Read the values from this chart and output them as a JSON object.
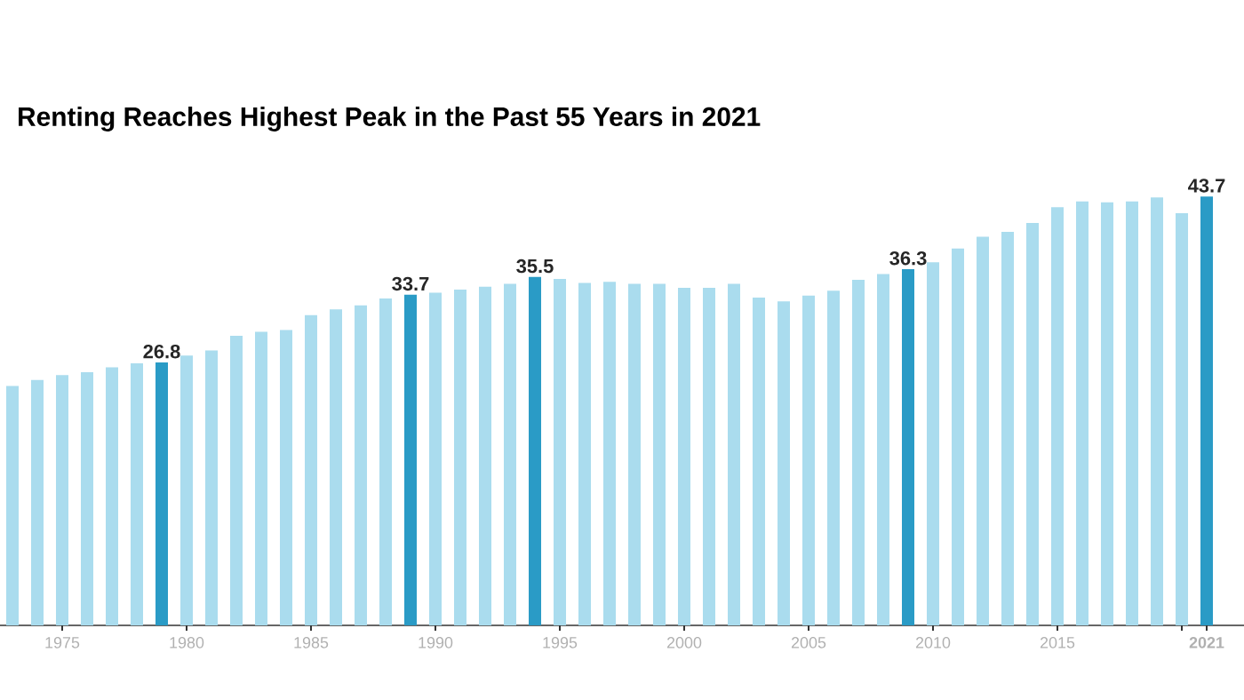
{
  "chart_data": {
    "type": "bar",
    "title": "Renting Reaches Highest Peak in the Past 55 Years in 2021",
    "x": [
      1973,
      1974,
      1975,
      1976,
      1977,
      1978,
      1979,
      1980,
      1981,
      1982,
      1983,
      1984,
      1985,
      1986,
      1987,
      1988,
      1989,
      1990,
      1991,
      1992,
      1993,
      1994,
      1995,
      1996,
      1997,
      1998,
      1999,
      2000,
      2001,
      2002,
      2003,
      2004,
      2005,
      2006,
      2007,
      2008,
      2009,
      2010,
      2011,
      2012,
      2013,
      2014,
      2015,
      2016,
      2017,
      2018,
      2019,
      2020,
      2021
    ],
    "values": [
      24.4,
      25.0,
      25.5,
      25.8,
      26.3,
      26.7,
      26.8,
      27.5,
      28.0,
      29.5,
      29.9,
      30.1,
      31.6,
      32.2,
      32.6,
      33.3,
      33.7,
      33.9,
      34.2,
      34.5,
      34.8,
      35.5,
      35.3,
      34.9,
      35.0,
      34.8,
      34.8,
      34.4,
      34.4,
      34.8,
      33.4,
      33.0,
      33.6,
      34.1,
      35.2,
      35.8,
      36.3,
      37.0,
      38.4,
      39.6,
      40.1,
      41.0,
      42.6,
      43.2,
      43.1,
      43.2,
      43.6,
      42.0,
      43.7
    ],
    "value_labels": [
      null,
      null,
      null,
      null,
      null,
      null,
      "26.8",
      null,
      null,
      null,
      null,
      null,
      null,
      null,
      null,
      null,
      "33.7",
      null,
      null,
      null,
      null,
      "35.5",
      null,
      null,
      null,
      null,
      null,
      null,
      null,
      null,
      null,
      null,
      null,
      null,
      null,
      null,
      "36.3",
      null,
      null,
      null,
      null,
      null,
      null,
      null,
      null,
      null,
      null,
      null,
      "43.7"
    ],
    "colors": [
      "#aadcee",
      "#aadcee",
      "#aadcee",
      "#aadcee",
      "#aadcee",
      "#aadcee",
      "#2a9bc6",
      "#aadcee",
      "#aadcee",
      "#aadcee",
      "#aadcee",
      "#aadcee",
      "#aadcee",
      "#aadcee",
      "#aadcee",
      "#aadcee",
      "#2a9bc6",
      "#aadcee",
      "#aadcee",
      "#aadcee",
      "#aadcee",
      "#2a9bc6",
      "#aadcee",
      "#aadcee",
      "#aadcee",
      "#aadcee",
      "#aadcee",
      "#aadcee",
      "#aadcee",
      "#aadcee",
      "#aadcee",
      "#aadcee",
      "#aadcee",
      "#aadcee",
      "#aadcee",
      "#aadcee",
      "#2a9bc6",
      "#aadcee",
      "#aadcee",
      "#aadcee",
      "#aadcee",
      "#aadcee",
      "#aadcee",
      "#aadcee",
      "#aadcee",
      "#aadcee",
      "#aadcee",
      "#aadcee",
      "#2a9bc6"
    ],
    "xlim": [
      1972.5,
      2022.5
    ],
    "xticks": [
      1975,
      1980,
      1985,
      1990,
      1995,
      2000,
      2005,
      2010,
      2015,
      {
        "value": 2020,
        "label": null
      },
      {
        "value": 2021,
        "label": "**2021**"
      }
    ],
    "tick_labels": "x"
  }
}
